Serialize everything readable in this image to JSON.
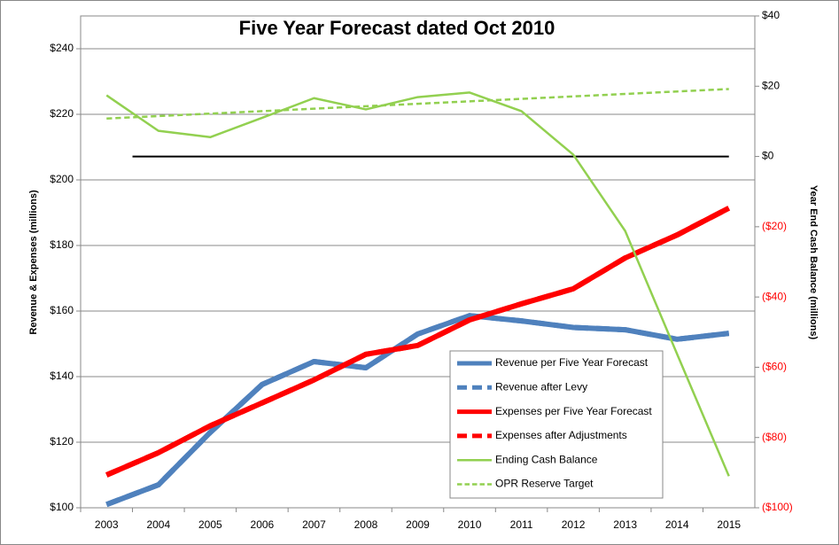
{
  "chart_data": {
    "type": "line",
    "title": "Five Year Forecast dated Oct 2010",
    "ylabel": "Revenue & Expenses (millions)",
    "y2label": "Year End Cash Balance (millions)",
    "categories": [
      "2003",
      "2004",
      "2005",
      "2006",
      "2007",
      "2008",
      "2009",
      "2010",
      "2011",
      "2012",
      "2013",
      "2014",
      "2015"
    ],
    "series": [
      {
        "name": "Revenue per Five Year Forecast",
        "color": "#4f81bd",
        "dash": false,
        "axis": "y",
        "values": [
          101,
          107,
          123,
          137.6,
          144.6,
          142.7,
          153,
          158.6,
          157,
          155,
          154.3,
          151.4,
          153.2
        ]
      },
      {
        "name": "Revenue after Levy",
        "color": "#4f81bd",
        "dash": true,
        "axis": "y",
        "values": [
          101,
          107,
          123,
          137.6,
          144.6,
          142.7,
          153,
          158.6,
          157,
          155,
          154.3,
          151.4,
          153.2
        ]
      },
      {
        "name": "Expenses per Five Year Forecast",
        "color": "#ff0000",
        "dash": false,
        "axis": "y",
        "values": [
          110,
          116.8,
          125,
          132,
          139,
          146.8,
          149.5,
          157.3,
          162.2,
          166.8,
          176.2,
          183.2,
          191.4
        ]
      },
      {
        "name": "Expenses after Adjustments",
        "color": "#ff0000",
        "dash": true,
        "axis": "y",
        "values": [
          110,
          116.8,
          125,
          132,
          139,
          146.8,
          149.5,
          157.3,
          162.2,
          166.8,
          176.2,
          183.2,
          191.4
        ]
      },
      {
        "name": "Ending Cash Balance",
        "color": "#92d050",
        "dash": false,
        "axis": "y2",
        "values": [
          17.4,
          7.3,
          5.5,
          11,
          16.6,
          13.4,
          16.9,
          18.2,
          12.9,
          0.5,
          -21.2,
          -56.2,
          -91
        ]
      },
      {
        "name": "OPR Reserve Target",
        "color": "#92d050",
        "dash": true,
        "axis": "y2",
        "values": [
          10.8,
          11.5,
          12.2,
          12.9,
          13.6,
          14.3,
          15,
          15.7,
          16.4,
          17.1,
          17.8,
          18.5,
          19.2
        ]
      }
    ],
    "ylim": [
      100,
      250
    ],
    "yticks": [
      {
        "value": 100,
        "label": "$100"
      },
      {
        "value": 120,
        "label": "$120"
      },
      {
        "value": 140,
        "label": "$140"
      },
      {
        "value": 160,
        "label": "$160"
      },
      {
        "value": 180,
        "label": "$180"
      },
      {
        "value": 200,
        "label": "$200"
      },
      {
        "value": 220,
        "label": "$220"
      },
      {
        "value": 240,
        "label": "$240"
      }
    ],
    "y2lim": [
      -100,
      40
    ],
    "y2ticks": [
      {
        "value": -100,
        "label": "($100)"
      },
      {
        "value": -80,
        "label": "($80)"
      },
      {
        "value": -60,
        "label": "($60)"
      },
      {
        "value": -40,
        "label": "($40)"
      },
      {
        "value": -20,
        "label": "($20)"
      },
      {
        "value": 0,
        "label": "$0"
      },
      {
        "value": 20,
        "label": "$20"
      },
      {
        "value": 40,
        "label": "$40"
      }
    ],
    "negative_tick_color": "#ff0000",
    "reference_line": {
      "value": 0,
      "axis": "y2",
      "color": "#000000"
    },
    "grid": true
  }
}
